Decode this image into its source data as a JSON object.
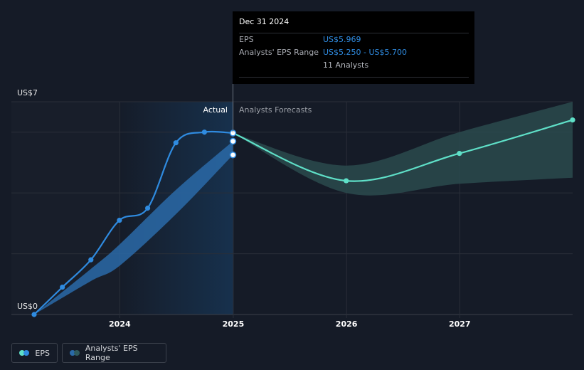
{
  "tooltip": {
    "date": "Dec 31 2024",
    "eps_label": "EPS",
    "eps_value": "US$5.969",
    "range_label": "Analysts' EPS Range",
    "range_value": "US$5.250 - US$5.700",
    "analysts": "11 Analysts"
  },
  "legend": {
    "eps_label": "EPS",
    "range_label": "Analysts' EPS Range"
  },
  "colors": {
    "background": "#151b27",
    "actual_line": "#2f8be0",
    "forecast_line": "#5fe0c8",
    "forecast_band": "#2a4a4d",
    "actual_band": "#2a6aa8"
  },
  "chart_data": {
    "type": "line",
    "y_label_top": "US$7",
    "y_label_bottom": "US$0",
    "ylim": [
      0,
      7
    ],
    "xlim": [
      "2023-03-31",
      "2027-12-31"
    ],
    "x_ticks": [
      "2024",
      "2025",
      "2026",
      "2027"
    ],
    "grid": true,
    "region_labels": {
      "actual": "Actual",
      "forecast": "Analysts Forecasts"
    },
    "series": [
      {
        "name": "EPS",
        "points": [
          {
            "x": "2023-03-31",
            "y": 0.0
          },
          {
            "x": "2023-06-30",
            "y": 0.9
          },
          {
            "x": "2023-09-30",
            "y": 1.8
          },
          {
            "x": "2023-12-31",
            "y": 3.1
          },
          {
            "x": "2024-03-31",
            "y": 3.5
          },
          {
            "x": "2024-06-30",
            "y": 5.65
          },
          {
            "x": "2024-09-30",
            "y": 6.0
          },
          {
            "x": "2024-12-31",
            "y": 5.969
          }
        ]
      },
      {
        "name": "EPS Forecast",
        "points": [
          {
            "x": "2024-12-31",
            "y": 5.969
          },
          {
            "x": "2025-12-31",
            "y": 4.4
          },
          {
            "x": "2026-12-31",
            "y": 5.3
          },
          {
            "x": "2027-12-31",
            "y": 6.4
          }
        ]
      },
      {
        "name": "Analysts' EPS Range",
        "points": [
          {
            "x": "2023-03-31",
            "low": 0.0,
            "high": 0.0
          },
          {
            "x": "2023-09-30",
            "low": 1.1,
            "high": 1.5
          },
          {
            "x": "2023-12-31",
            "low": 1.6,
            "high": 2.3
          },
          {
            "x": "2024-06-30",
            "low": 3.3,
            "high": 4.1
          },
          {
            "x": "2024-12-31",
            "low": 5.25,
            "high": 5.7
          }
        ]
      },
      {
        "name": "Analysts' EPS Range Forecast",
        "points": [
          {
            "x": "2024-12-31",
            "low": 5.969,
            "high": 5.969
          },
          {
            "x": "2025-12-31",
            "low": 4.0,
            "high": 4.9
          },
          {
            "x": "2026-12-31",
            "low": 4.3,
            "high": 6.0
          },
          {
            "x": "2027-12-31",
            "low": 4.5,
            "high": 7.0
          }
        ]
      }
    ],
    "markers": [
      {
        "x": "2024-12-31",
        "y": 5.7
      },
      {
        "x": "2024-12-31",
        "y": 5.25
      }
    ]
  }
}
